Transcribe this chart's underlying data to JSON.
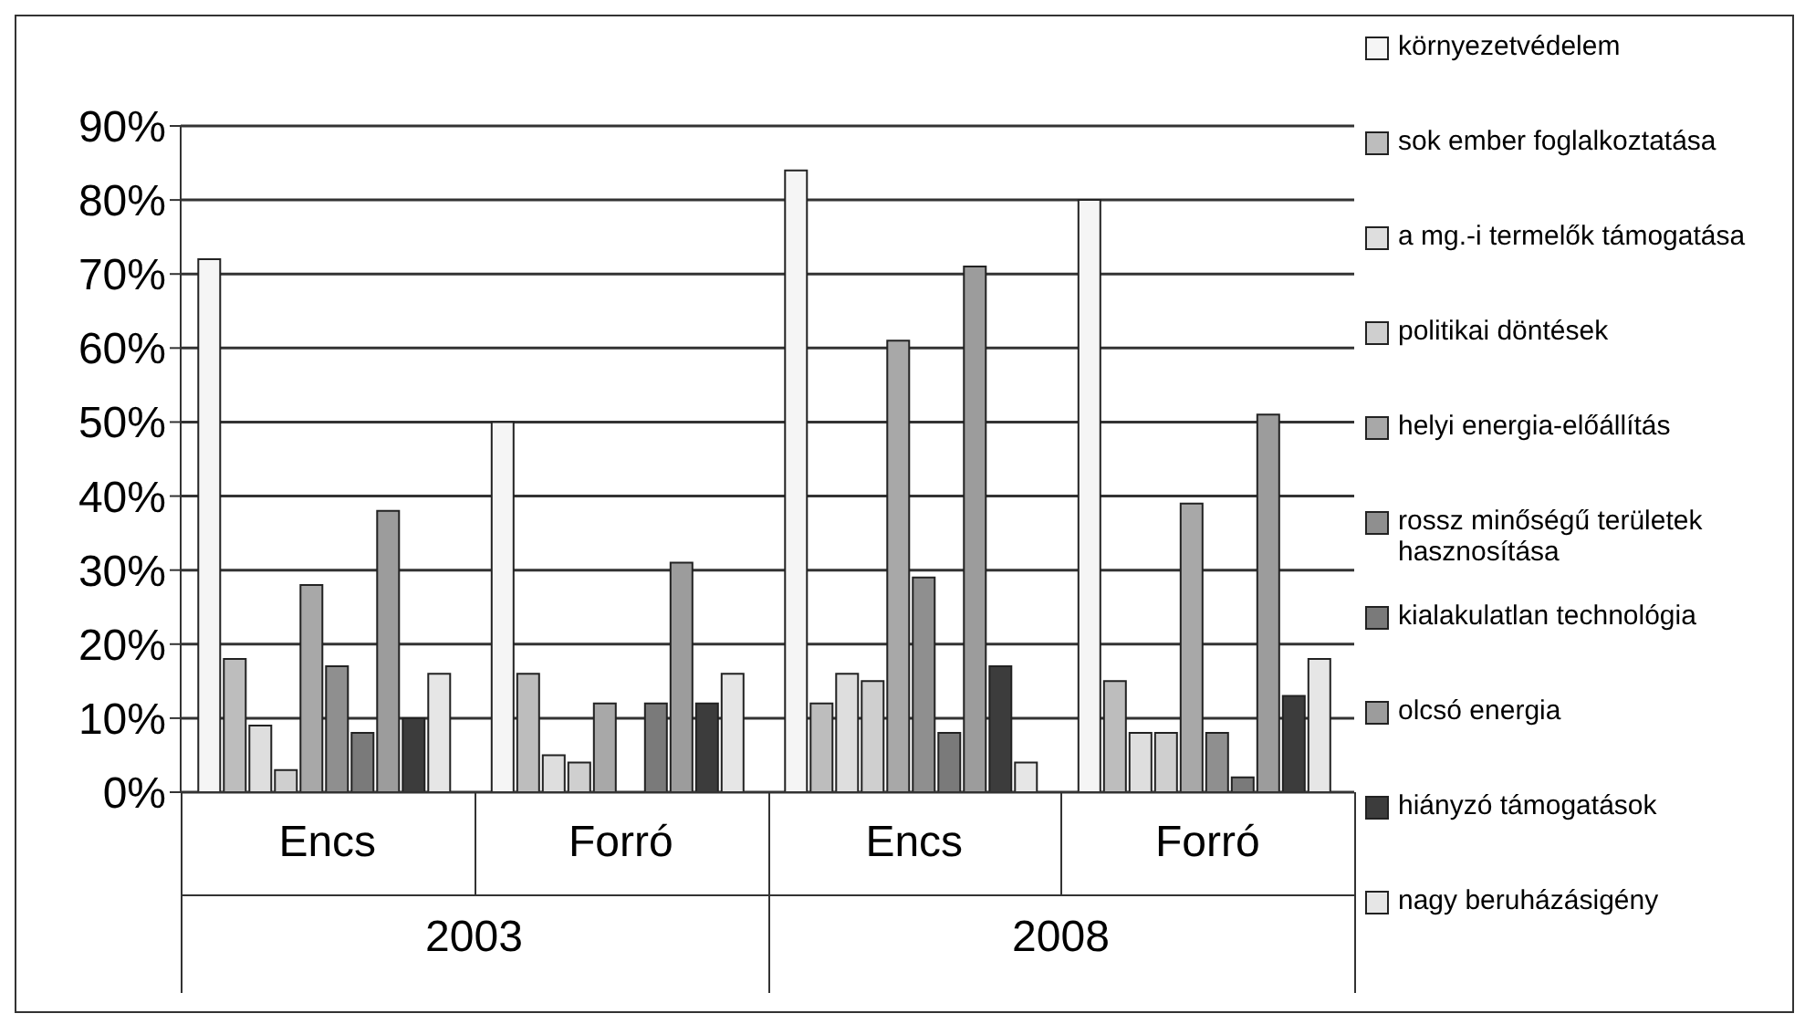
{
  "chart_data": {
    "type": "bar",
    "categories": [
      "Encs",
      "Forró",
      "Encs",
      "Forró"
    ],
    "annotations": [
      "2003",
      "2008"
    ],
    "series": [
      {
        "name": "környezetvédelem",
        "color": "#f5f5f5",
        "values": [
          72,
          50,
          84,
          80
        ]
      },
      {
        "name": "sok ember foglalkoztatása",
        "color": "#bdbdbd",
        "values": [
          18,
          16,
          12,
          15
        ]
      },
      {
        "name": "a mg.-i termelők támogatása",
        "color": "#dedede",
        "values": [
          9,
          5,
          16,
          8
        ]
      },
      {
        "name": "politikai döntések",
        "color": "#cfcfcf",
        "values": [
          3,
          4,
          15,
          8
        ]
      },
      {
        "name": "helyi energia-előállítás",
        "color": "#a8a8a8",
        "values": [
          28,
          12,
          61,
          39
        ]
      },
      {
        "name": "rossz minőségű területek hasznosítása",
        "color": "#8f8f8f",
        "values": [
          17,
          null,
          29,
          8
        ]
      },
      {
        "name": "kialakulatlan technológia",
        "color": "#7a7a7a",
        "values": [
          8,
          12,
          8,
          2
        ]
      },
      {
        "name": "olcsó energia",
        "color": "#9c9c9c",
        "values": [
          38,
          31,
          71,
          51
        ]
      },
      {
        "name": "hiányzó támogatások",
        "color": "#3c3c3c",
        "values": [
          10,
          12,
          17,
          13
        ]
      },
      {
        "name": "nagy beruházásigény",
        "color": "#e6e6e6",
        "values": [
          16,
          16,
          4,
          18
        ]
      }
    ],
    "ylim": [
      0,
      90
    ],
    "yticks": [
      {
        "value": 0,
        "label": "0%"
      },
      {
        "value": 10,
        "label": "10%"
      },
      {
        "value": 20,
        "label": "20%"
      },
      {
        "value": 30,
        "label": "30%"
      },
      {
        "value": 40,
        "label": "40%"
      },
      {
        "value": 50,
        "label": "50%"
      },
      {
        "value": 60,
        "label": "60%"
      },
      {
        "value": 70,
        "label": "70%"
      },
      {
        "value": 80,
        "label": "80%"
      },
      {
        "value": 90,
        "label": "90%"
      }
    ],
    "grid": "y",
    "legend": "right"
  }
}
